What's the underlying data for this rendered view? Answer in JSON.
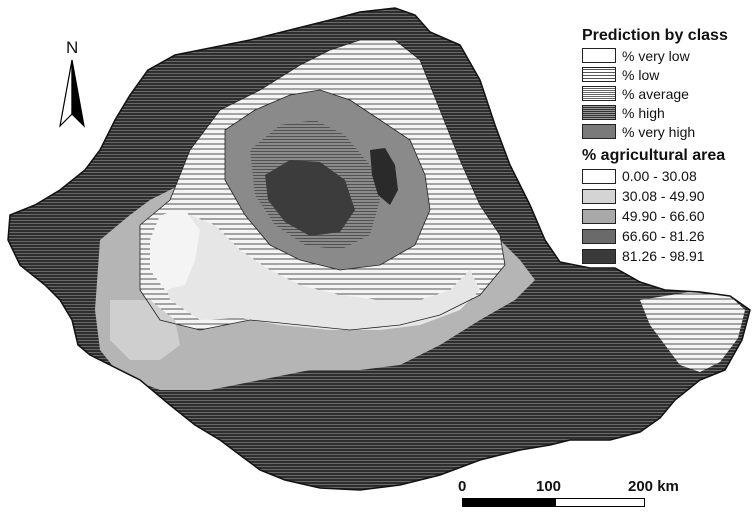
{
  "north_label": "N",
  "legend": {
    "prediction_title": "Prediction by class",
    "prediction_classes": [
      {
        "label": "% very low"
      },
      {
        "label": "% low"
      },
      {
        "label": "% average"
      },
      {
        "label": "% high"
      },
      {
        "label": "% very high"
      }
    ],
    "area_title": "% agricultural area",
    "area_classes": [
      {
        "label": "0.00 - 30.08",
        "color": "#ffffff"
      },
      {
        "label": "30.08 - 49.90",
        "color": "#d4d4d4"
      },
      {
        "label": "49.90 - 66.60",
        "color": "#a9a9a9"
      },
      {
        "label": "66.60 - 81.26",
        "color": "#6a6a6a"
      },
      {
        "label": "81.26 - 98.91",
        "color": "#3a3a3a"
      }
    ]
  },
  "scale": {
    "ticks": [
      "0",
      "100",
      "200 km"
    ]
  }
}
